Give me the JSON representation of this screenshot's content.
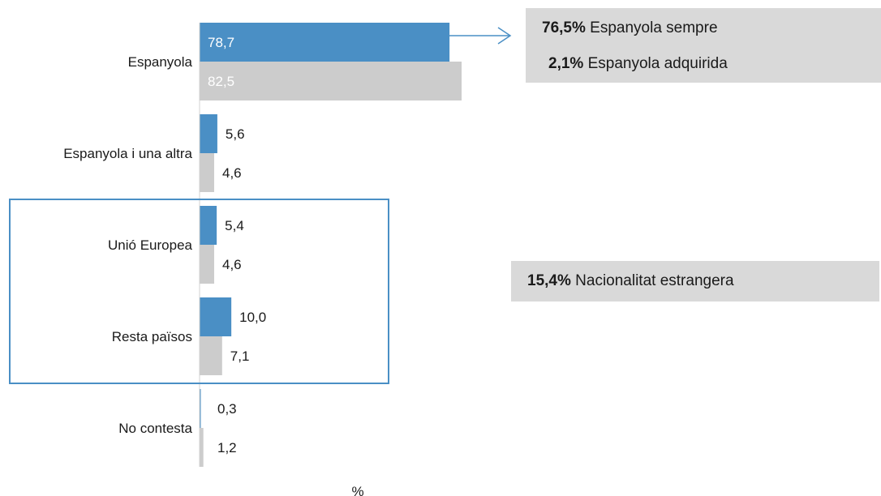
{
  "chart_data": {
    "type": "bar",
    "orientation": "horizontal",
    "xlabel": "%",
    "xlim": [
      0,
      100
    ],
    "grid": false,
    "legend": "none",
    "categories": [
      "Espanyola",
      "Espanyola i una altra",
      "Unió Europea",
      "Resta països",
      "No contesta"
    ],
    "series": [
      {
        "color": "#4a8fc5",
        "values": [
          78.7,
          5.6,
          5.4,
          10.0,
          0.3
        ],
        "labels": [
          "78,7",
          "5,6",
          "5,4",
          "10,0",
          "0,3"
        ]
      },
      {
        "color": "#cccccc",
        "values": [
          82.5,
          4.6,
          4.6,
          7.1,
          1.2
        ],
        "labels": [
          "82,5",
          "4,6",
          "4,6",
          "7,1",
          "1,2"
        ]
      }
    ],
    "highlight_box": {
      "categories": [
        "Unió Europea",
        "Resta països"
      ],
      "color": "#4a8fc5"
    },
    "annotations": [
      {
        "value": "76,5%",
        "text": "Espanyola sempre"
      },
      {
        "value": "2,1%",
        "text": "Espanyola adquirida"
      },
      {
        "value": "15,4%",
        "text": "Nacionalitat estrangera"
      }
    ]
  }
}
